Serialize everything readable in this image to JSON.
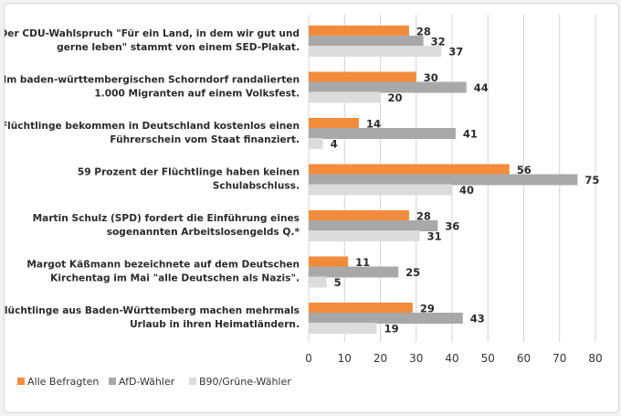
{
  "chart_data": {
    "type": "bar",
    "orientation": "horizontal",
    "categories": [
      [
        "Der CDU-Wahlspruch \"Für ein Land, in dem wir gut und",
        "gerne leben\" stammt von einem SED-Plakat."
      ],
      [
        "Im baden-württembergischen Schorndorf randalierten",
        "1.000 Migranten auf einem Volksfest."
      ],
      [
        "Flüchtlinge bekommen in Deutschland kostenlos einen",
        "Führerschein vom Staat finanziert."
      ],
      [
        "59 Prozent der Flüchtlinge haben keinen",
        "Schulabschluss."
      ],
      [
        "Martin Schulz (SPD) fordert die Einführung eines",
        "sogenannten Arbeitslosengelds Q.*"
      ],
      [
        "Margot Käßmann bezeichnete auf dem Deutschen",
        "Kirchentag im Mai \"alle Deutschen als Nazis\"."
      ],
      [
        "Flüchtlinge aus Baden-Württemberg machen mehrmals",
        "Urlaub in ihren Heimatländern."
      ]
    ],
    "series": [
      {
        "name": "Alle Befragten",
        "color": "#f28c3c",
        "values": [
          28,
          30,
          14,
          56,
          28,
          11,
          29
        ]
      },
      {
        "name": "AfD-Wähler",
        "color": "#a8a8a8",
        "values": [
          32,
          44,
          41,
          75,
          36,
          25,
          43
        ]
      },
      {
        "name": "B90/Grüne-Wähler",
        "color": "#dcdcdc",
        "values": [
          37,
          20,
          4,
          40,
          31,
          5,
          19
        ]
      }
    ],
    "xlim": [
      0,
      80
    ],
    "xticks": [
      "0",
      "10",
      "20",
      "30",
      "40",
      "50",
      "60",
      "70",
      "80"
    ],
    "legend_position": "bottom-left"
  }
}
